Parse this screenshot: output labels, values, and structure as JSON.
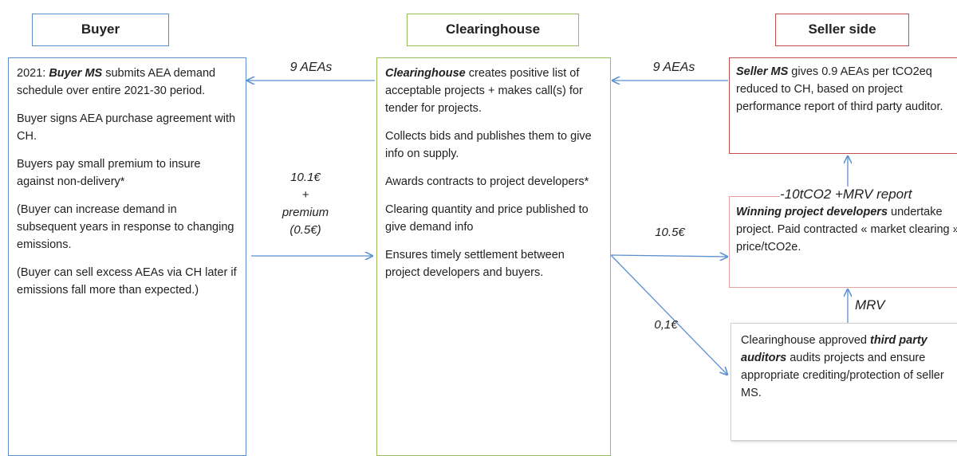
{
  "headers": {
    "buyer": "Buyer",
    "clearinghouse": "Clearinghouse",
    "seller": "Seller side"
  },
  "buyer": {
    "paragraphs": [
      [
        "2021: ",
        "Buyer MS",
        " submits AEA demand schedule over  entire 2021-30 period."
      ],
      [
        "Buyer signs AEA purchase agreement with CH."
      ],
      [
        "Buyers pay small premium to insure against non-delivery*"
      ],
      [
        "(Buyer can increase demand in subsequent years in response to changing emissions."
      ],
      [
        "(Buyer can sell excess AEAs via CH later if emissions fall more than expected.)"
      ]
    ]
  },
  "clearinghouse": {
    "paragraphs": [
      [
        "Clearinghouse",
        "  creates positive list of acceptable projects + makes call(s) for tender for projects."
      ],
      [
        "Collects bids and publishes them to give info on supply."
      ],
      [
        "Awards contracts to project developers*"
      ],
      [
        "Clearing quantity and price published to give demand info"
      ],
      [
        "Ensures timely settlement between project developers and buyers."
      ]
    ]
  },
  "seller_ms": [
    "Seller MS",
    " gives 0.9 AEAs per tCO2eq reduced to CH, based on project performance report of  third party auditor."
  ],
  "developers": [
    "Winning project developers",
    " undertake project. Paid contracted « market clearing » price/tCO2e."
  ],
  "auditors": [
    "Clearinghouse approved ",
    "third party auditors",
    "  audits projects and ensure appropriate crediting/protection of seller MS."
  ],
  "flows": {
    "ch_to_buyer": "9 AEAs",
    "seller_to_ch": "9 AEAs",
    "buyer_payment": [
      "10.1€",
      "+",
      "premium",
      "(0.5€)"
    ],
    "ch_to_developers": "10.5€",
    "ch_to_auditors": "0,1€",
    "developers_to_seller": "-10tCO2 +MRV report",
    "auditors_to_developers": "MRV"
  }
}
